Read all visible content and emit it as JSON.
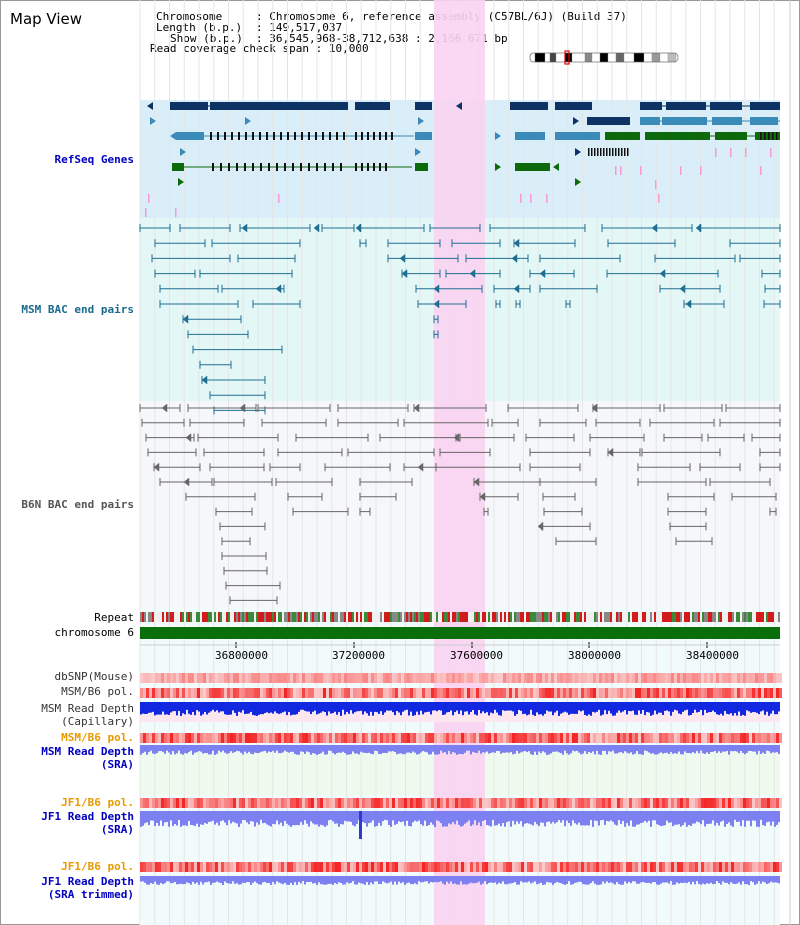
{
  "title": "Map View",
  "info": {
    "chromosome_label": "Chromosome",
    "chromosome_value": "Chromosome 6, reference assembly (C57BL/6J) (Build 37)",
    "length_label": "Length (b.p.)",
    "length_value": "149,517,037",
    "show_label": "Show (b.p.)",
    "show_value": "36,545,968-38,712,638 : 2,166,671 bp",
    "coverage_label": "Read coverage check span",
    "coverage_value": "10,000",
    "sep": ":"
  },
  "tracks": {
    "refseq": "RefSeq Genes",
    "msm_bac": "MSM BAC end pairs",
    "b6n_bac": "B6N BAC end pairs",
    "repeat": "Repeat",
    "chromosome": "chromosome 6",
    "dbsnp": "dbSNP(Mouse)",
    "msm_pol": "MSM/B6 pol.",
    "msm_depth_cap_1": "MSM Read Depth",
    "msm_depth_cap_2": "(Capillary)",
    "msm_pol_2": "MSM/B6 pol.",
    "msm_depth_sra_1": "MSM Read Depth",
    "msm_depth_sra_2": "(SRA)",
    "jf1_pol": "JF1/B6 pol.",
    "jf1_depth_sra_1": "JF1 Read Depth",
    "jf1_depth_sra_2": "(SRA)",
    "jf1_pol_2": "JF1/B6 pol.",
    "jf1_depth_trim_1": "JF1 Read Depth",
    "jf1_depth_trim_2": "(SRA trimmed)"
  },
  "ruler": {
    "ticks": [
      "36800000",
      "37200000",
      "37600000",
      "38000000",
      "38400000"
    ]
  },
  "colors": {
    "refseq_bg": "#d9eef8",
    "msm_bg": "#e4f7f7",
    "b6n_bg": "#f5f7fa",
    "highlight": "#f9d3f1",
    "gene_dark": "#0d3264",
    "gene_mid": "#3a8bb7",
    "gene_green": "#0c6a0c",
    "msm_line": "#1f6f93",
    "b6n_line": "#666666",
    "chromosome_bar": "#0a6e0a",
    "depth_blue": "#1228e0",
    "depth_light": "#7c80f0"
  }
}
